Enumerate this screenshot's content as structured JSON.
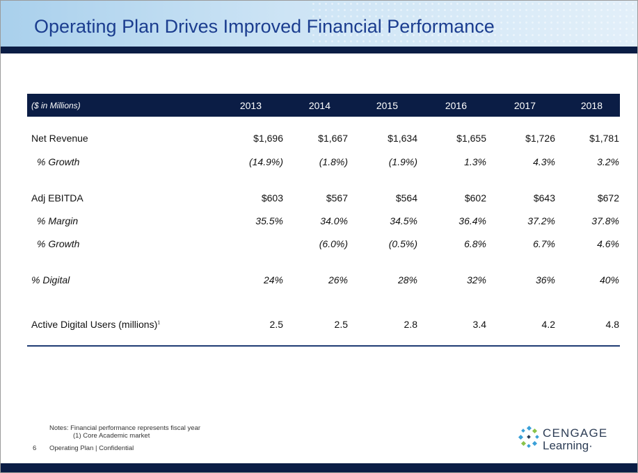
{
  "title": "Operating Plan Drives Improved Financial Performance",
  "table": {
    "header_label": "($ in Millions)",
    "years": [
      "2013",
      "2014",
      "2015",
      "2016",
      "2017",
      "2018"
    ],
    "rows": [
      {
        "label": "Net Revenue",
        "values": [
          "$1,696",
          "$1,667",
          "$1,634",
          "$1,655",
          "$1,726",
          "$1,781"
        ]
      },
      {
        "label": "% Growth",
        "values": [
          "(14.9%)",
          "(1.8%)",
          "(1.9%)",
          "1.3%",
          "4.3%",
          "3.2%"
        ]
      },
      {
        "label": "Adj EBITDA",
        "values": [
          "$603",
          "$567",
          "$564",
          "$602",
          "$643",
          "$672"
        ]
      },
      {
        "label": "% Margin",
        "values": [
          "35.5%",
          "34.0%",
          "34.5%",
          "36.4%",
          "37.2%",
          "37.8%"
        ]
      },
      {
        "label": "% Growth",
        "values": [
          "",
          "(6.0%)",
          "(0.5%)",
          "6.8%",
          "6.7%",
          "4.6%"
        ]
      },
      {
        "label": "% Digital",
        "values": [
          "24%",
          "26%",
          "28%",
          "32%",
          "36%",
          "40%"
        ]
      },
      {
        "label": "Active Digital Users (millions)",
        "footnote_mark": "1",
        "values": [
          "2.5",
          "2.5",
          "2.8",
          "3.4",
          "4.2",
          "4.8"
        ]
      }
    ]
  },
  "notes": {
    "line1": "Notes:  Financial performance represents fiscal year",
    "line2": "(1) Core Academic market"
  },
  "footer": {
    "page_number": "6",
    "text": "Operating Plan | Confidential"
  },
  "logo": {
    "line1": "CENGAGE",
    "line2": "Learning",
    "trademark": "·"
  },
  "colors": {
    "navy": "#0b1d45",
    "title_blue": "#1b3d8f",
    "logo_blue": "#3aa0d8",
    "logo_green": "#8bc34a"
  }
}
